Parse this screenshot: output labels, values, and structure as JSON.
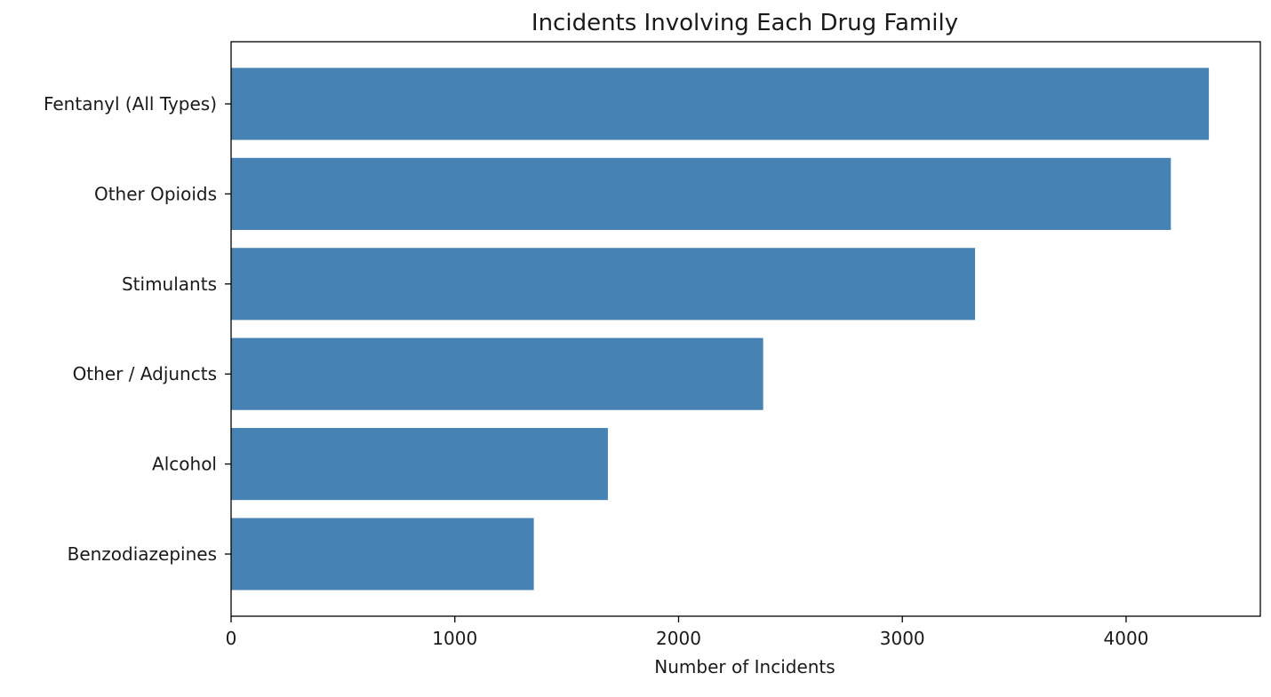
{
  "chart_data": {
    "type": "bar",
    "orientation": "horizontal",
    "title": "Incidents Involving Each Drug Family",
    "xlabel": "Number of Incidents",
    "ylabel": "",
    "categories": [
      "Fentanyl (All Types)",
      "Other Opioids",
      "Stimulants",
      "Other / Adjuncts",
      "Alcohol",
      "Benzodiazepines"
    ],
    "values": [
      4370,
      4200,
      3325,
      2378,
      1684,
      1353
    ],
    "xlim": [
      0,
      4600
    ],
    "xticks": [
      0,
      1000,
      2000,
      3000,
      4000
    ],
    "xtick_labels": [
      "0",
      "1000",
      "2000",
      "3000",
      "4000"
    ],
    "bar_color": "#4682b4",
    "grid": false,
    "legend": "none"
  }
}
